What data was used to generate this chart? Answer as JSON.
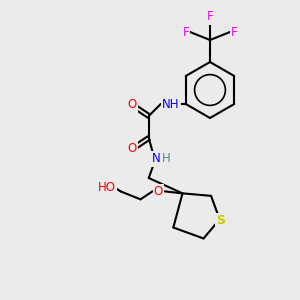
{
  "bg_color": "#ebebeb",
  "atom_colors": {
    "C": "#000000",
    "N": "#0000ff",
    "O": "#ff0000",
    "S": "#cccc00",
    "F": "#ff00ff",
    "H": "#4a8a8a"
  },
  "bond_color": "#000000",
  "bond_width": 1.5,
  "figsize": [
    3.0,
    3.0
  ],
  "dpi": 100
}
